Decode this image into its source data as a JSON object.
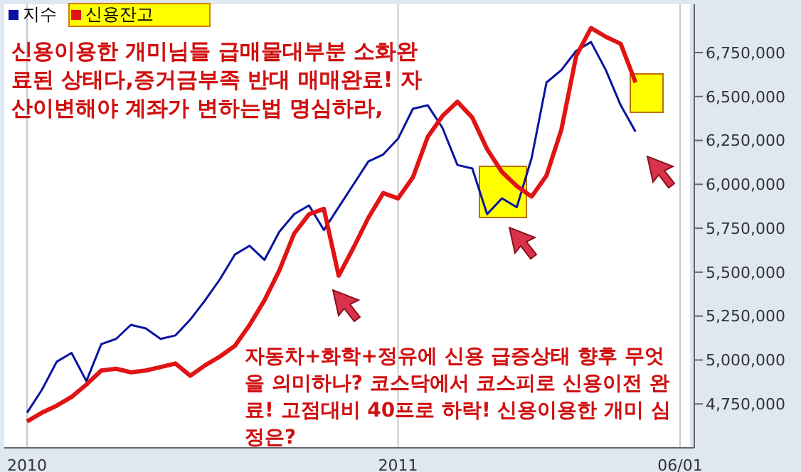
{
  "chart_data": {
    "type": "line",
    "legend": "top left",
    "grid": "x",
    "annotations": [
      "신용이용한 개미님들 급매물대부분 소화완료된 상태다,증거금부족 반대 매매완료! 자산이변해야 계좌가 변하는법 명심하라,",
      "자동차+화학+정유에 신용 급증상태 향후 무엇을 의미하나? 코스닥에서 코스피로 신용이전 완료! 고점대비 40프로 하락! 신용이용한 개미 심정은?"
    ],
    "categories": [
      "2010",
      null,
      null,
      null,
      null,
      null,
      null,
      null,
      null,
      null,
      null,
      null,
      null,
      null,
      null,
      null,
      null,
      null,
      null,
      null,
      null,
      null,
      null,
      null,
      null,
      "2011",
      null,
      null,
      null,
      null,
      null,
      null,
      null,
      null,
      null,
      null,
      null,
      null,
      null,
      null,
      null,
      null,
      null,
      null,
      "06/01"
    ],
    "ylim": [
      4500000,
      7025000
    ],
    "yticks": [
      {
        "value": 4750000,
        "label": "4,750,000"
      },
      {
        "value": 5000000,
        "label": "5,000,000"
      },
      {
        "value": 5250000,
        "label": "5,250,000"
      },
      {
        "value": 5500000,
        "label": "5,500,000"
      },
      {
        "value": 5750000,
        "label": "5,750,000"
      },
      {
        "value": 6000000,
        "label": "6,000,000"
      },
      {
        "value": 6250000,
        "label": "6,250,000"
      },
      {
        "value": 6500000,
        "label": "6,500,000"
      },
      {
        "value": 6750000,
        "label": "6,750,000"
      }
    ],
    "series": [
      {
        "name": "지수",
        "color": "#0a14a0",
        "values": [
          4700000,
          4830000,
          4990000,
          5040000,
          4880000,
          5090000,
          5120000,
          5200000,
          5180000,
          5120000,
          5140000,
          5230000,
          5340000,
          5460000,
          5600000,
          5650000,
          5570000,
          5730000,
          5830000,
          5880000,
          5740000,
          5870000,
          6000000,
          6130000,
          6170000,
          6260000,
          6430000,
          6450000,
          6320000,
          6110000,
          6090000,
          5830000,
          5920000,
          5870000,
          6150000,
          6580000,
          6650000,
          6760000,
          6810000,
          6650000,
          6450000,
          6300000,
          null,
          null,
          null
        ]
      },
      {
        "name": "신용잔고",
        "color": "#e01414",
        "values": [
          4650000,
          4700000,
          4740000,
          4790000,
          4860000,
          4940000,
          4950000,
          4930000,
          4940000,
          4960000,
          4980000,
          4910000,
          4970000,
          5020000,
          5080000,
          5200000,
          5340000,
          5510000,
          5720000,
          5830000,
          5860000,
          5480000,
          5640000,
          5810000,
          5950000,
          5920000,
          6040000,
          6270000,
          6390000,
          6470000,
          6380000,
          6200000,
          6070000,
          5990000,
          5930000,
          6050000,
          6310000,
          6730000,
          6890000,
          6840000,
          6800000,
          6580000,
          null,
          null,
          null
        ]
      }
    ]
  }
}
